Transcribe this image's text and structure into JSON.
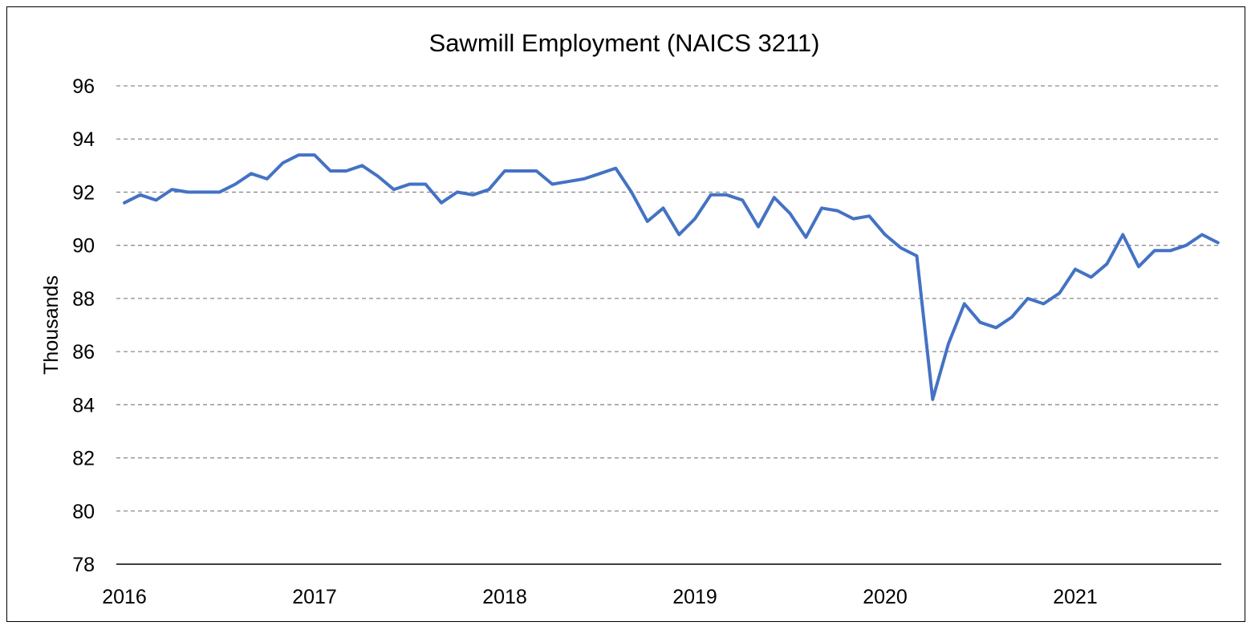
{
  "chart_data": {
    "type": "line",
    "title": "Sawmill Employment (NAICS 3211)",
    "xlabel": "",
    "ylabel": "Thousands",
    "ylim": [
      78,
      96
    ],
    "yticks": [
      78,
      80,
      82,
      84,
      86,
      88,
      90,
      92,
      94,
      96
    ],
    "ytick_labels": [
      "78",
      "80",
      "82",
      "84",
      "86",
      "88",
      "90",
      "92",
      "94",
      "96"
    ],
    "xticks": [
      "2016",
      "2017",
      "2018",
      "2019",
      "2020",
      "2021"
    ],
    "x_start": "2016-01",
    "x_end": "2021-10",
    "grid": "horizontal dashed",
    "legend": "none",
    "color": "#4472C4",
    "series": [
      {
        "x": [
          "2016-01",
          "2016-02",
          "2016-03",
          "2016-04",
          "2016-05",
          "2016-06",
          "2016-07",
          "2016-08",
          "2016-09",
          "2016-10",
          "2016-11",
          "2016-12",
          "2017-01",
          "2017-02",
          "2017-03",
          "2017-04",
          "2017-05",
          "2017-06",
          "2017-07",
          "2017-08",
          "2017-09",
          "2017-10",
          "2017-11",
          "2017-12",
          "2018-01",
          "2018-02",
          "2018-03",
          "2018-04",
          "2018-05",
          "2018-06",
          "2018-07",
          "2018-08",
          "2018-09",
          "2018-10",
          "2018-11",
          "2018-12",
          "2019-01",
          "2019-02",
          "2019-03",
          "2019-04",
          "2019-05",
          "2019-06",
          "2019-07",
          "2019-08",
          "2019-09",
          "2019-10",
          "2019-11",
          "2019-12",
          "2020-01",
          "2020-02",
          "2020-03",
          "2020-04",
          "2020-05",
          "2020-06",
          "2020-07",
          "2020-08",
          "2020-09",
          "2020-10",
          "2020-11",
          "2020-12",
          "2021-01",
          "2021-02",
          "2021-03",
          "2021-04",
          "2021-05",
          "2021-06",
          "2021-07",
          "2021-08",
          "2021-09",
          "2021-10"
        ],
        "values": [
          91.6,
          91.9,
          91.7,
          92.1,
          92.0,
          92.0,
          92.0,
          92.3,
          92.7,
          92.5,
          93.1,
          93.4,
          93.4,
          92.8,
          92.8,
          93.0,
          92.6,
          92.1,
          92.3,
          92.3,
          91.6,
          92.0,
          91.9,
          92.1,
          92.8,
          92.8,
          92.8,
          92.3,
          92.4,
          92.5,
          92.7,
          92.9,
          92.0,
          90.9,
          91.4,
          90.4,
          91.0,
          91.9,
          91.9,
          91.7,
          90.7,
          91.8,
          91.2,
          90.3,
          91.4,
          91.3,
          91.0,
          91.1,
          90.4,
          89.9,
          89.6,
          84.2,
          86.3,
          87.8,
          87.1,
          86.9,
          87.3,
          88.0,
          87.8,
          88.2,
          89.1,
          88.8,
          89.3,
          90.4,
          89.2,
          89.8,
          89.8,
          90.0,
          90.4,
          90.1
        ]
      }
    ]
  }
}
